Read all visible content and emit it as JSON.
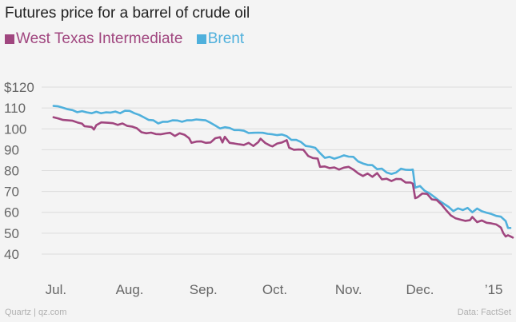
{
  "chart_data": {
    "type": "line",
    "title": "Futures price for a barrel of crude oil",
    "y_ticks": [
      "$120",
      "110",
      "100",
      "90",
      "80",
      "70",
      "60",
      "50",
      "40"
    ],
    "x_ticks": [
      "Jul.",
      "Aug.",
      "Sep.",
      "Oct.",
      "Nov.",
      "Dec.",
      "’15"
    ],
    "ylim": [
      35,
      125
    ],
    "xlim_days": [
      -5,
      192
    ],
    "x_unit": "days since Jun 30, 2014",
    "x_tick_days": [
      1,
      32,
      63,
      93,
      124,
      154,
      185
    ],
    "series": [
      {
        "name": "West Texas Intermediate",
        "color": "#a0467f",
        "points": [
          [
            0,
            105.6
          ],
          [
            2,
            105
          ],
          [
            4,
            104.3
          ],
          [
            8,
            103.9
          ],
          [
            10,
            103.1
          ],
          [
            12,
            102.5
          ],
          [
            13,
            101.3
          ],
          [
            16,
            100.9
          ],
          [
            17,
            99.7
          ],
          [
            18,
            101.8
          ],
          [
            20,
            103.1
          ],
          [
            23,
            102.9
          ],
          [
            25,
            102.7
          ],
          [
            27,
            101.9
          ],
          [
            29,
            102.6
          ],
          [
            31,
            101.4
          ],
          [
            33,
            101.1
          ],
          [
            35,
            100.3
          ],
          [
            37,
            98.4
          ],
          [
            39,
            97.9
          ],
          [
            41,
            98.2
          ],
          [
            43,
            97.5
          ],
          [
            45,
            97.4
          ],
          [
            47,
            97.8
          ],
          [
            49,
            98.1
          ],
          [
            51,
            96.6
          ],
          [
            53,
            97.9
          ],
          [
            55,
            97.2
          ],
          [
            57,
            95.5
          ],
          [
            58,
            93.3
          ],
          [
            60,
            93.9
          ],
          [
            62,
            94.0
          ],
          [
            64,
            93.3
          ],
          [
            66,
            93.5
          ],
          [
            68,
            95.5
          ],
          [
            70,
            96.0
          ],
          [
            71,
            93.5
          ],
          [
            72,
            96.2
          ],
          [
            74,
            93.3
          ],
          [
            76,
            93.0
          ],
          [
            78,
            92.6
          ],
          [
            80,
            92.3
          ],
          [
            82,
            93.3
          ],
          [
            84,
            91.8
          ],
          [
            86,
            93.6
          ],
          [
            87,
            95.3
          ],
          [
            89,
            93.2
          ],
          [
            91,
            92.0
          ],
          [
            92,
            91.6
          ],
          [
            94,
            93.0
          ],
          [
            96,
            93.5
          ],
          [
            98,
            94.6
          ],
          [
            99,
            91.0
          ],
          [
            101,
            90.0
          ],
          [
            103,
            90.1
          ],
          [
            105,
            90.0
          ],
          [
            107,
            87.0
          ],
          [
            109,
            86.0
          ],
          [
            111,
            85.8
          ],
          [
            112,
            81.8
          ],
          [
            114,
            82.0
          ],
          [
            116,
            81.2
          ],
          [
            118,
            81.5
          ],
          [
            120,
            80.5
          ],
          [
            122,
            81.4
          ],
          [
            124,
            81.8
          ],
          [
            126,
            80.5
          ],
          [
            128,
            78.7
          ],
          [
            130,
            77.4
          ],
          [
            132,
            78.6
          ],
          [
            134,
            77.0
          ],
          [
            136,
            78.8
          ],
          [
            138,
            75.8
          ],
          [
            140,
            76.1
          ],
          [
            142,
            75.0
          ],
          [
            144,
            76.0
          ],
          [
            146,
            75.9
          ],
          [
            148,
            74.3
          ],
          [
            150,
            74.3
          ],
          [
            151,
            73.7
          ],
          [
            152,
            66.8
          ],
          [
            153,
            67.2
          ],
          [
            155,
            69.0
          ],
          [
            157,
            68.8
          ],
          [
            159,
            66.2
          ],
          [
            161,
            65.9
          ],
          [
            163,
            63.8
          ],
          [
            165,
            61.0
          ],
          [
            167,
            58.5
          ],
          [
            169,
            57.1
          ],
          [
            171,
            56.5
          ],
          [
            173,
            55.9
          ],
          [
            175,
            56.2
          ],
          [
            176,
            57.8
          ],
          [
            178,
            55.3
          ],
          [
            180,
            56.1
          ],
          [
            182,
            55.0
          ],
          [
            184,
            54.7
          ],
          [
            186,
            54.2
          ],
          [
            187,
            53.5
          ],
          [
            188,
            52.7
          ],
          [
            189,
            50.0
          ],
          [
            190,
            48.4
          ],
          [
            191,
            49.0
          ],
          [
            192,
            48.5
          ],
          [
            193,
            47.9
          ]
        ]
      },
      {
        "name": "Brent",
        "color": "#4fb0dc",
        "points": [
          [
            0,
            111.0
          ],
          [
            2,
            110.8
          ],
          [
            4,
            110.1
          ],
          [
            6,
            109.4
          ],
          [
            8,
            109.0
          ],
          [
            10,
            108.0
          ],
          [
            12,
            108.5
          ],
          [
            14,
            107.9
          ],
          [
            16,
            107.5
          ],
          [
            18,
            108.2
          ],
          [
            20,
            107.5
          ],
          [
            22,
            107.9
          ],
          [
            24,
            107.8
          ],
          [
            26,
            108.3
          ],
          [
            28,
            107.5
          ],
          [
            30,
            108.7
          ],
          [
            32,
            108.6
          ],
          [
            34,
            107.5
          ],
          [
            36,
            106.7
          ],
          [
            38,
            105.5
          ],
          [
            40,
            104.3
          ],
          [
            42,
            104.1
          ],
          [
            44,
            102.6
          ],
          [
            46,
            103.4
          ],
          [
            48,
            103.4
          ],
          [
            50,
            104.1
          ],
          [
            52,
            104.0
          ],
          [
            54,
            103.4
          ],
          [
            56,
            104.1
          ],
          [
            58,
            104.1
          ],
          [
            60,
            104.5
          ],
          [
            62,
            104.3
          ],
          [
            64,
            104.1
          ],
          [
            66,
            102.9
          ],
          [
            68,
            101.6
          ],
          [
            70,
            100.2
          ],
          [
            72,
            100.8
          ],
          [
            74,
            100.4
          ],
          [
            76,
            99.4
          ],
          [
            78,
            99.4
          ],
          [
            80,
            99.1
          ],
          [
            82,
            98.0
          ],
          [
            84,
            98.1
          ],
          [
            86,
            98.2
          ],
          [
            88,
            98.1
          ],
          [
            90,
            97.6
          ],
          [
            92,
            97.4
          ],
          [
            94,
            97.0
          ],
          [
            96,
            97.3
          ],
          [
            98,
            96.5
          ],
          [
            100,
            94.7
          ],
          [
            102,
            94.7
          ],
          [
            104,
            93.7
          ],
          [
            106,
            91.8
          ],
          [
            108,
            91.5
          ],
          [
            110,
            90.9
          ],
          [
            112,
            88.4
          ],
          [
            114,
            86.1
          ],
          [
            116,
            86.6
          ],
          [
            118,
            85.7
          ],
          [
            120,
            86.4
          ],
          [
            122,
            87.3
          ],
          [
            124,
            86.7
          ],
          [
            126,
            86.6
          ],
          [
            128,
            84.4
          ],
          [
            130,
            83.4
          ],
          [
            132,
            82.7
          ],
          [
            134,
            82.6
          ],
          [
            136,
            80.7
          ],
          [
            138,
            80.9
          ],
          [
            140,
            79.1
          ],
          [
            142,
            78.4
          ],
          [
            144,
            79.1
          ],
          [
            146,
            80.9
          ],
          [
            148,
            80.4
          ],
          [
            150,
            80.3
          ],
          [
            151,
            80.5
          ],
          [
            152,
            71.8
          ],
          [
            154,
            72.6
          ],
          [
            156,
            70.3
          ],
          [
            158,
            69.1
          ],
          [
            160,
            67.4
          ],
          [
            162,
            65.6
          ],
          [
            164,
            64.1
          ],
          [
            166,
            62.6
          ],
          [
            168,
            60.6
          ],
          [
            170,
            61.9
          ],
          [
            172,
            61.1
          ],
          [
            174,
            62.1
          ],
          [
            176,
            60.0
          ],
          [
            178,
            61.8
          ],
          [
            180,
            60.5
          ],
          [
            182,
            59.8
          ],
          [
            184,
            59.2
          ],
          [
            186,
            58.3
          ],
          [
            188,
            57.9
          ],
          [
            190,
            55.8
          ],
          [
            191,
            52.5
          ],
          [
            192,
            52.5
          ]
        ]
      }
    ]
  },
  "footer": {
    "source_left": "Quartz | qz.com",
    "source_right": "Data: FactSet"
  }
}
